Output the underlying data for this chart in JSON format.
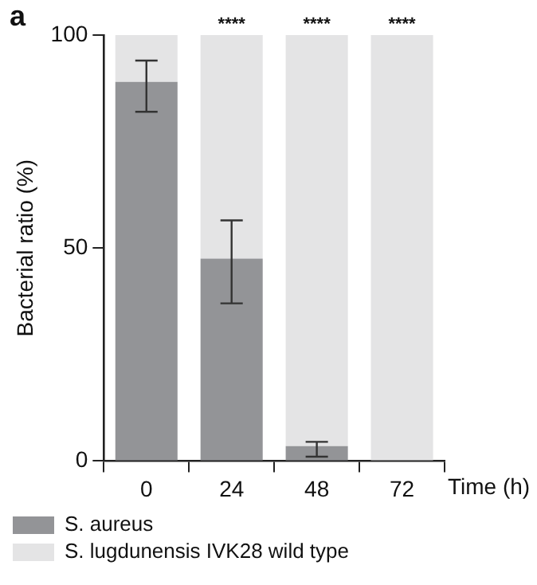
{
  "chart_data": {
    "type": "bar",
    "stacked": true,
    "categories": [
      "0",
      "24",
      "48",
      "72"
    ],
    "xlabel": "Time (h)",
    "ylabel": "Bacterial ratio (%)",
    "ylim": [
      0,
      100
    ],
    "yticks": [
      0,
      50,
      100
    ],
    "grid": false,
    "legend": "bottom left",
    "series": [
      {
        "name": "S. aureus",
        "color": "#939497",
        "values": [
          89,
          47.5,
          3.5,
          0
        ],
        "errors": [
          [
            82,
            94
          ],
          [
            37,
            56.5
          ],
          [
            1,
            4.5
          ],
          null
        ]
      },
      {
        "name": "S. lugdunensis IVK28 wild type",
        "color": "#e4e4e5",
        "values": [
          11,
          52.5,
          96.5,
          100
        ]
      }
    ],
    "annotations": [
      "a",
      {
        "text": "****",
        "x": "24",
        "y": 100
      },
      {
        "text": "****",
        "x": "48",
        "y": 100
      },
      {
        "text": "****",
        "x": "72",
        "y": 100
      }
    ]
  }
}
